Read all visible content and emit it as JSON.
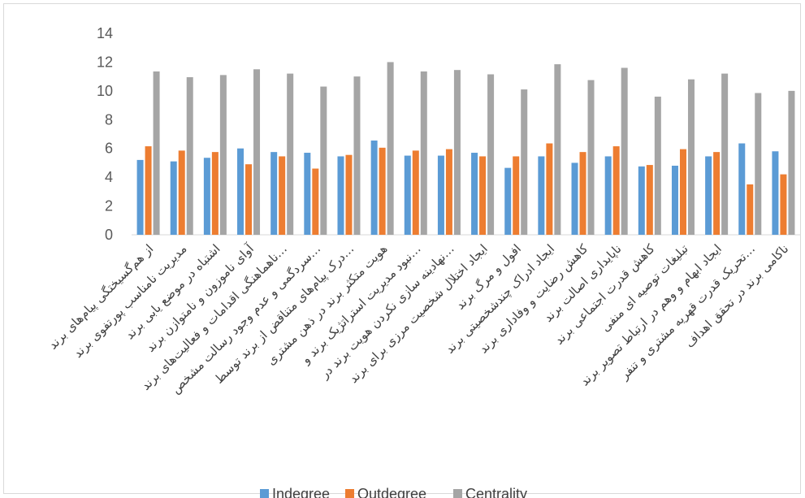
{
  "chart_data": {
    "type": "bar",
    "categories": [
      "از هم‌گسیختگی پیام‌های برند",
      "مدیریت نامناسب پورتفوی برند",
      "اشتباه در موضع یابی برند",
      "آوای ناموزون و نامتوازن برند",
      "ناهماهنگی اقدامات و فعالیت‌های برند…",
      "سردگمی و عدم وجود رسالت مشخص…",
      "درک پیام‌های متناقض از برند توسط…",
      "هویت متکثر برند در ذهن مشتری",
      "نبود مدیریت استراتژیک برند و…",
      "نهادینه سازی نکردن هویت برند در…",
      "ایجاد اختلال شخصیت مرزی برای برند",
      "افول و مرگ برند",
      "ایجاد ادراک چندشخصیتی برند",
      "کاهش رضایت و وفاداری برند",
      "ناپایداری اصالت برند",
      "کاهش قدرت اجتماعی برند",
      "تبلیغات توصیه ای منفی",
      "ایجاد ابهام و وهم در ارتباط تصویر برند",
      "تحریک قدرت قهریه مشتری و تنفر…",
      "ناکامی برند در تحقق اهداف"
    ],
    "series": [
      {
        "name": "Indegree",
        "color": "#5b9bd5",
        "values": [
          5.2,
          5.1,
          5.35,
          6.0,
          5.75,
          5.7,
          5.45,
          6.55,
          5.5,
          5.5,
          5.7,
          4.65,
          5.45,
          5.0,
          5.45,
          4.75,
          4.8,
          5.45,
          6.35,
          5.8
        ]
      },
      {
        "name": "Outdegree",
        "color": "#ed7d31",
        "values": [
          6.15,
          5.85,
          5.75,
          4.9,
          5.45,
          4.6,
          5.55,
          6.05,
          5.85,
          5.95,
          5.45,
          5.45,
          6.35,
          5.75,
          6.15,
          4.85,
          5.95,
          5.75,
          3.5,
          4.2
        ]
      },
      {
        "name": "Centrality",
        "color": "#a5a5a5",
        "values": [
          11.35,
          10.95,
          11.1,
          11.5,
          11.2,
          10.3,
          11.0,
          12.0,
          11.35,
          11.45,
          11.15,
          10.1,
          11.85,
          10.75,
          11.6,
          9.6,
          10.8,
          11.2,
          9.85,
          10.0
        ]
      }
    ],
    "ylim": [
      0,
      14
    ],
    "yticks": [
      0,
      2,
      4,
      6,
      8,
      10,
      12,
      14
    ],
    "grid": false,
    "legend": "bottom",
    "title": "",
    "xlabel": "",
    "ylabel": ""
  }
}
